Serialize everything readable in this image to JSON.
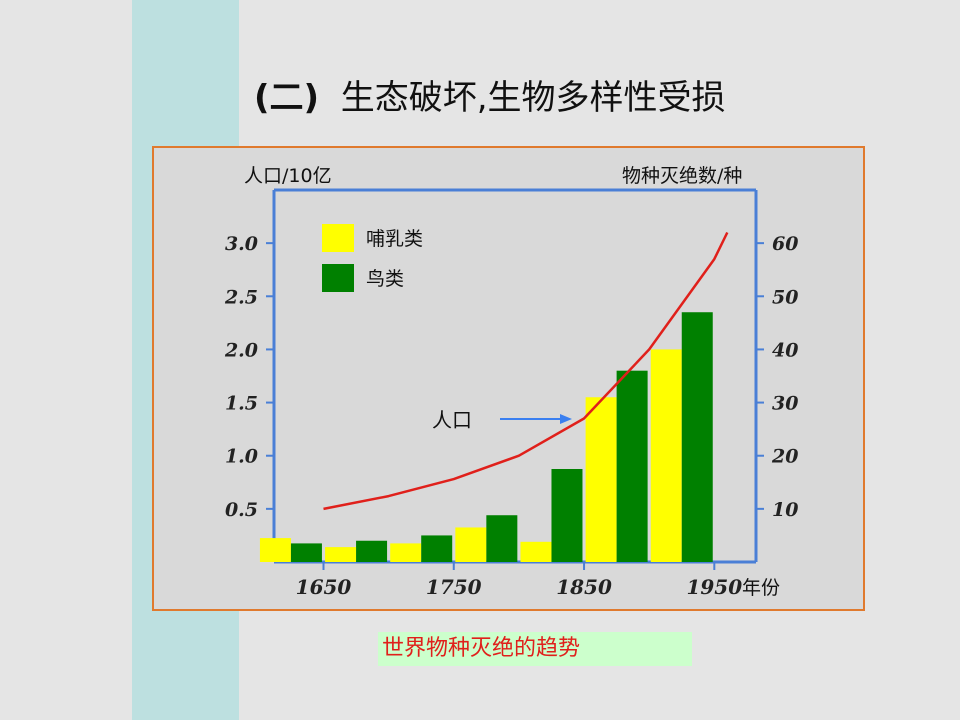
{
  "slide": {
    "title_paren": "(二)",
    "title_text": "生态破坏,生物多样性受损",
    "caption": "世界物种灭绝的趋势"
  },
  "colors": {
    "background": "#e5e5e5",
    "accent_bar": "#bde0e0",
    "frame_border": "#e07a2e",
    "plot_area": "#d9d9d9",
    "axis": "#4a7fd6",
    "mammals": "#ffff00",
    "birds": "#008000",
    "population": "#e0201b",
    "caption_bg": "#ccffcc",
    "caption_text": "#e0201b",
    "annotation_arrow": "#3a7ff0"
  },
  "chart_data": {
    "type": "bar",
    "title": "",
    "x_unit_label": "年份",
    "y_left_label": "人口/10亿",
    "y_right_label": "物种灭绝数/种",
    "x_ticks": [
      1650,
      1750,
      1850,
      1950
    ],
    "y_left_ticks": [
      "0.5",
      "1.0",
      "1.5",
      "2.0",
      "2.5",
      "3.0"
    ],
    "y_right_ticks": [
      "10",
      "20",
      "30",
      "40",
      "50",
      "60"
    ],
    "y_right_range": [
      0,
      70
    ],
    "y_left_range": [
      0,
      3.5
    ],
    "legend": {
      "position": "top-left",
      "entries": [
        "哺乳类",
        "鸟类"
      ]
    },
    "categories": [
      1625,
      1675,
      1725,
      1775,
      1825,
      1875,
      1925
    ],
    "series": [
      {
        "name": "哺乳类",
        "color": "#ffff00",
        "values": [
          4.5,
          2.8,
          3.5,
          6.5,
          3.8,
          31,
          40
        ]
      },
      {
        "name": "鸟类",
        "color": "#008000",
        "values": [
          3.5,
          4,
          5,
          8.8,
          17.5,
          36,
          47
        ]
      }
    ],
    "population_curve": {
      "label": "人口",
      "x": [
        1650,
        1700,
        1750,
        1800,
        1850,
        1900,
        1950,
        1960
      ],
      "y": [
        0.5,
        0.62,
        0.78,
        1.0,
        1.35,
        2.0,
        2.85,
        3.1
      ]
    }
  }
}
